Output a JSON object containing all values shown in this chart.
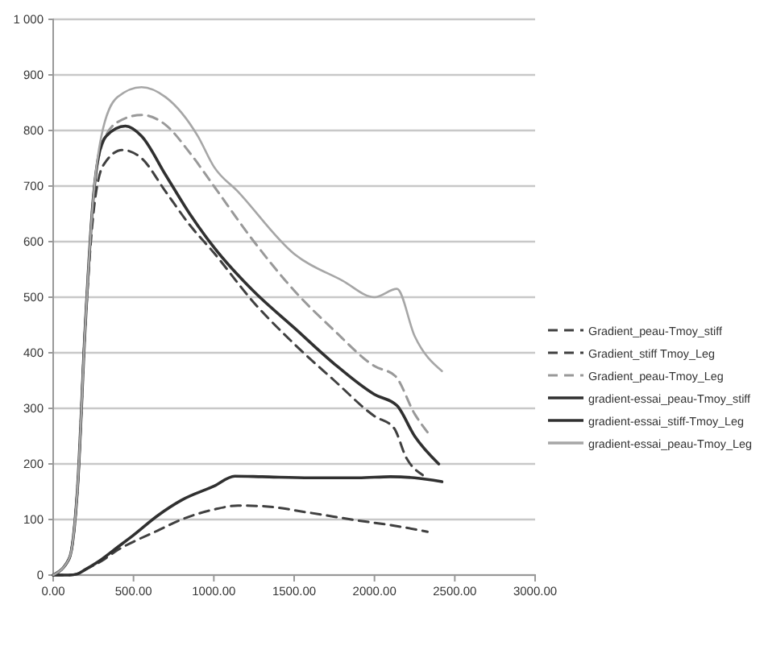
{
  "chart_data": {
    "type": "line",
    "xlim": [
      0,
      3000
    ],
    "xticks": [
      {
        "value": 0,
        "label": "0.00"
      },
      {
        "value": 500,
        "label": "500.00"
      },
      {
        "value": 1000,
        "label": "1000.00"
      },
      {
        "value": 1500,
        "label": "1500.00"
      },
      {
        "value": 2000,
        "label": "2000.00"
      },
      {
        "value": 2500,
        "label": "2500.00"
      },
      {
        "value": 3000,
        "label": "3000.00"
      }
    ],
    "ylim": [
      0,
      1000
    ],
    "yticks": [
      0,
      100,
      200,
      300,
      400,
      500,
      600,
      700,
      800,
      900,
      {
        "value": 1000,
        "label": "1 000"
      }
    ],
    "grid": "y",
    "legend": "right",
    "marker": "none",
    "series": [
      {
        "name": "Gradient_peau-Tmoy_stiff",
        "color": "#404040",
        "line_style": "dashed",
        "x": [
          0,
          100,
          150,
          200,
          250,
          280,
          330,
          430,
          550,
          700,
          850,
          1000,
          1250,
          1500,
          1750,
          2000,
          2120,
          2200,
          2300
        ],
        "values": [
          0,
          30,
          150,
          450,
          650,
          710,
          745,
          765,
          750,
          690,
          630,
          580,
          490,
          416,
          350,
          286,
          265,
          210,
          180
        ]
      },
      {
        "name": "Gradient_stiff Tmoy_Leg",
        "color": "#404040",
        "line_style": "dashed",
        "x": [
          0,
          100,
          150,
          200,
          300,
          400,
          500,
          650,
          800,
          1000,
          1150,
          1300,
          1600,
          1900,
          2100,
          2330
        ],
        "values": [
          0,
          0,
          2,
          10,
          25,
          45,
          60,
          80,
          100,
          118,
          125,
          124,
          112,
          98,
          90,
          78
        ]
      },
      {
        "name": "Gradient_peau-Tmoy_Leg",
        "color": "#999999",
        "line_style": "dashed",
        "x": [
          0,
          100,
          150,
          200,
          250,
          300,
          400,
          550,
          700,
          850,
          1000,
          1250,
          1500,
          1750,
          2000,
          2130,
          2250,
          2330
        ],
        "values": [
          0,
          30,
          150,
          450,
          680,
          770,
          815,
          828,
          810,
          760,
          700,
          600,
          512,
          440,
          376,
          358,
          290,
          257
        ]
      },
      {
        "name": "gradient-essai_peau-Tmoy_stiff",
        "color": "#303030",
        "line_style": "solid",
        "x": [
          0,
          100,
          150,
          200,
          250,
          280,
          330,
          450,
          550,
          700,
          850,
          1000,
          1250,
          1500,
          1750,
          2000,
          2140,
          2250,
          2400
        ],
        "values": [
          0,
          30,
          150,
          450,
          680,
          750,
          790,
          808,
          790,
          720,
          650,
          590,
          510,
          445,
          380,
          325,
          305,
          250,
          200
        ]
      },
      {
        "name": "gradient-essai_stiff-Tmoy_Leg",
        "color": "#303030",
        "line_style": "solid",
        "x": [
          0,
          100,
          150,
          200,
          300,
          400,
          500,
          650,
          800,
          1000,
          1130,
          1300,
          1600,
          1900,
          2100,
          2250,
          2420
        ],
        "values": [
          0,
          0,
          2,
          10,
          28,
          50,
          72,
          107,
          135,
          160,
          178,
          177,
          175,
          175,
          177,
          175,
          168
        ]
      },
      {
        "name": "gradient-essai_peau-Tmoy_Leg",
        "color": "#a6a6a6",
        "line_style": "solid",
        "x": [
          0,
          100,
          150,
          200,
          250,
          300,
          400,
          550,
          700,
          900,
          1000,
          1150,
          1500,
          1800,
          2000,
          2140,
          2250,
          2420
        ],
        "values": [
          0,
          30,
          150,
          450,
          680,
          790,
          860,
          878,
          860,
          790,
          735,
          690,
          578,
          530,
          500,
          515,
          430,
          367
        ]
      }
    ]
  }
}
